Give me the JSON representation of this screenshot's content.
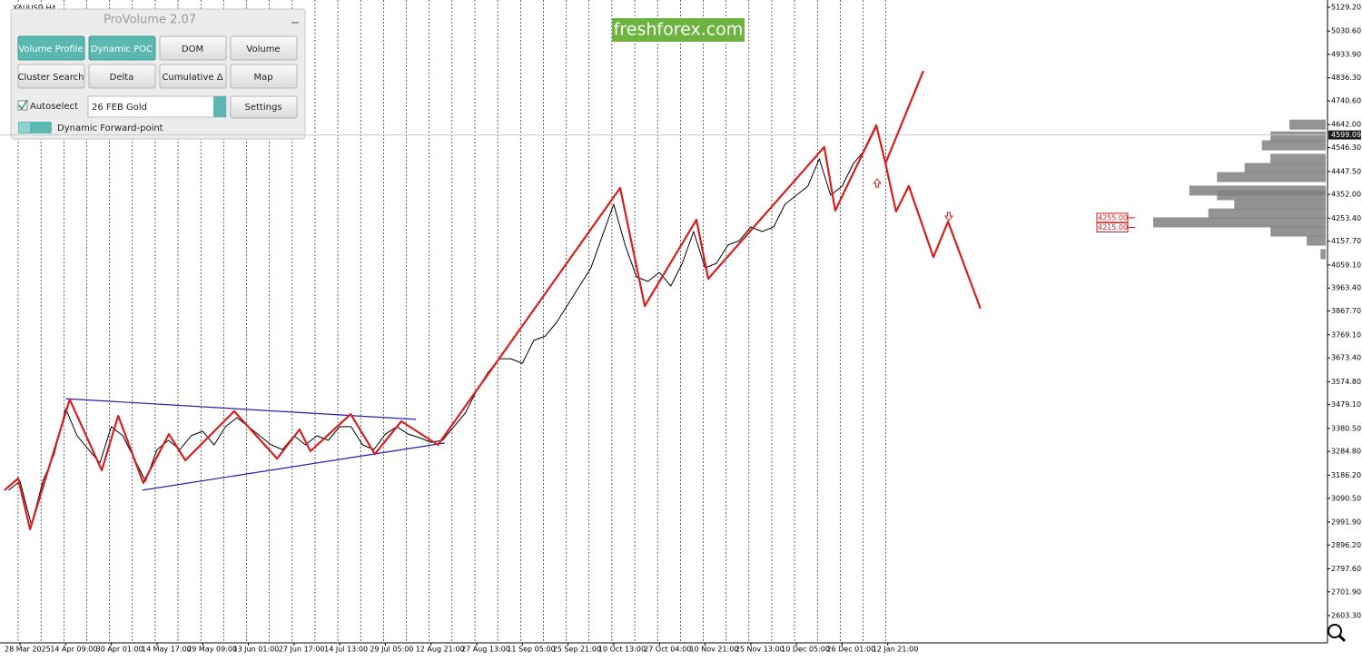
{
  "chart_data": {
    "type": "line",
    "symbol": "XAUUSD,H4",
    "watermark": "freshforex.com",
    "categories": [
      "28 Mar 2025",
      "14 Apr 09:00",
      "30 Apr 01:00",
      "14 May 17:00",
      "29 May 09:00",
      "13 Jun 01:00",
      "27 Jun 17:00",
      "14 Jul 13:00",
      "29 Jul 05:00",
      "12 Aug 21:00",
      "27 Aug 13:00",
      "11 Sep 05:00",
      "25 Sep 21:00",
      "10 Oct 13:00",
      "27 Oct 04:00",
      "10 Nov 21:00",
      "25 Nov 13:00",
      "10 Dec 05:00",
      "26 Dec 01:00",
      "12 Jan 21:00"
    ],
    "xlim": [
      -0.398,
      28.628
    ],
    "ylim": [
      2490.2,
      5159.4
    ],
    "yticks": [
      {
        "value": 5129.2,
        "label": "5129.20"
      },
      {
        "value": 5030.6,
        "label": "5030.60"
      },
      {
        "value": 4933.9,
        "label": "4933.90"
      },
      {
        "value": 4836.3,
        "label": "4836.30"
      },
      {
        "value": 4740.6,
        "label": "4740.60"
      },
      {
        "value": 4642,
        "label": "4642.00"
      },
      {
        "value": 4546.3,
        "label": "4546.30"
      },
      {
        "value": 4447.5,
        "label": "4447.50"
      },
      {
        "value": 4352,
        "label": "4352.00"
      },
      {
        "value": 4253.4,
        "label": "4253.40"
      },
      {
        "value": 4157.7,
        "label": "4157.70"
      },
      {
        "value": 4059.1,
        "label": "4059.10"
      },
      {
        "value": 3963.4,
        "label": "3963.40"
      },
      {
        "value": 3867.7,
        "label": "3867.70"
      },
      {
        "value": 3769.1,
        "label": "3769.10"
      },
      {
        "value": 3673.4,
        "label": "3673.40"
      },
      {
        "value": 3574.8,
        "label": "3574.80"
      },
      {
        "value": 3479.1,
        "label": "3479.10"
      },
      {
        "value": 3380.5,
        "label": "3380.50"
      },
      {
        "value": 3284.8,
        "label": "3284.80"
      },
      {
        "value": 3186.2,
        "label": "3186.20"
      },
      {
        "value": 3090.5,
        "label": "3090.50"
      },
      {
        "value": 2991.9,
        "label": "2991.90"
      },
      {
        "value": 2896.2,
        "label": "2896.20"
      },
      {
        "value": 2797.6,
        "label": "2797.60"
      },
      {
        "value": 2701.9,
        "label": "2701.90"
      },
      {
        "value": 2603.3,
        "label": "2603.30"
      }
    ],
    "color": "#000000",
    "x": [
      -0.25,
      0,
      0.25,
      0.5,
      0.75,
      1,
      1.25,
      1.5,
      1.75,
      2,
      2.25,
      2.5,
      2.75,
      3,
      3.25,
      3.5,
      3.75,
      4,
      4.25,
      4.5,
      4.75,
      5,
      5.25,
      5.5,
      5.75,
      6,
      6.25,
      6.5,
      6.75,
      7,
      7.25,
      7.5,
      7.75,
      8,
      8.25,
      8.5,
      8.75,
      9,
      9.25,
      9.5,
      9.75,
      10,
      10.25,
      10.5,
      10.75,
      11,
      11.25,
      11.5,
      11.75,
      12,
      12.25,
      12.5,
      12.75,
      13,
      13.25,
      13.5,
      13.75,
      14,
      14.25,
      14.5,
      14.75,
      15,
      15.25,
      15.5,
      15.75,
      16,
      16.25,
      16.5,
      16.75,
      17,
      17.25,
      17.5,
      17.75,
      18,
      18.25,
      18.5,
      18.75
    ],
    "values": [
      3124,
      3161,
      2980,
      3161,
      3274,
      3463,
      3350,
      3293,
      3237,
      3388,
      3350,
      3256,
      3161,
      3293,
      3331,
      3293,
      3350,
      3369,
      3312,
      3388,
      3425,
      3388,
      3350,
      3312,
      3293,
      3350,
      3312,
      3350,
      3331,
      3388,
      3388,
      3312,
      3293,
      3357,
      3388,
      3357,
      3342,
      3323,
      3331,
      3388,
      3444,
      3538,
      3614,
      3670,
      3670,
      3651,
      3746,
      3764,
      3821,
      3896,
      3972,
      4047,
      4179,
      4311,
      4142,
      4009,
      3991,
      4028,
      3972,
      4066,
      4198,
      4047,
      4066,
      4142,
      4160,
      4217,
      4198,
      4217,
      4311,
      4349,
      4386,
      4500,
      4349,
      4386,
      4481,
      4537,
      4632
    ],
    "last_price": {
      "value": 4599.09,
      "label": "4599.09"
    },
    "annotations": {
      "zigzag": {
        "color": "#d61f1f",
        "x": [
          -0.34,
          -0.04,
          0.22,
          1.09,
          1.79,
          2.15,
          2.7,
          3.26,
          3.62,
          4.69,
          5.63,
          6.12,
          6.36,
          7.24,
          7.77,
          8.35,
          9.15,
          13.14,
          13.68,
          14.81,
          15.07,
          17.61,
          17.85,
          18.75,
          18.95,
          19.78
        ],
        "values": [
          3124,
          3173,
          2962,
          3501,
          3207,
          3433,
          3154,
          3357,
          3248,
          3452,
          3255,
          3376,
          3286,
          3440,
          3274,
          3410,
          3312,
          4379,
          3889,
          4247,
          4002,
          4549,
          4285,
          4639,
          4481,
          4865
        ]
      },
      "forecast": {
        "color": "#d61f1f",
        "x": [
          18.95,
          19.18,
          19.46,
          20.0,
          20.32,
          21.03
        ],
        "values": [
          4481,
          4281,
          4387,
          4092,
          4239,
          3878
        ]
      },
      "upper_trendline": {
        "color": "#1f1fb4",
        "x": [
          1.0,
          8.67
        ],
        "values": [
          3504,
          3418
        ]
      },
      "lower_trendline": {
        "color": "#1f1fb4",
        "x": [
          2.68,
          9.3
        ],
        "values": [
          3124,
          3320
        ]
      }
    },
    "price_labels": [
      {
        "value": 4255,
        "label": "4255.00"
      },
      {
        "value": 4215,
        "label": "4215.00"
      }
    ],
    "volume_profile": {
      "color": "#808080",
      "prices": [
        4642,
        4593,
        4556,
        4500,
        4462,
        4424,
        4368,
        4349,
        4311,
        4273,
        4236,
        4198,
        4160,
        4104
      ],
      "values": [
        21,
        32,
        37,
        32,
        47,
        63,
        79,
        63,
        53,
        68,
        100,
        32,
        11,
        3
      ]
    }
  },
  "toolbar": {
    "title": "ProVolume 2.07",
    "buttons": [
      "Volume Profile",
      "Dynamic POC",
      "DOM",
      "Volume",
      "Cluster Search",
      "Delta",
      "Cumulative Δ",
      "Map"
    ],
    "autoselect": "Autoselect",
    "instrument": "26 FEB Gold",
    "settings": "Settings",
    "forward_point": "Dynamic Forward-point"
  }
}
